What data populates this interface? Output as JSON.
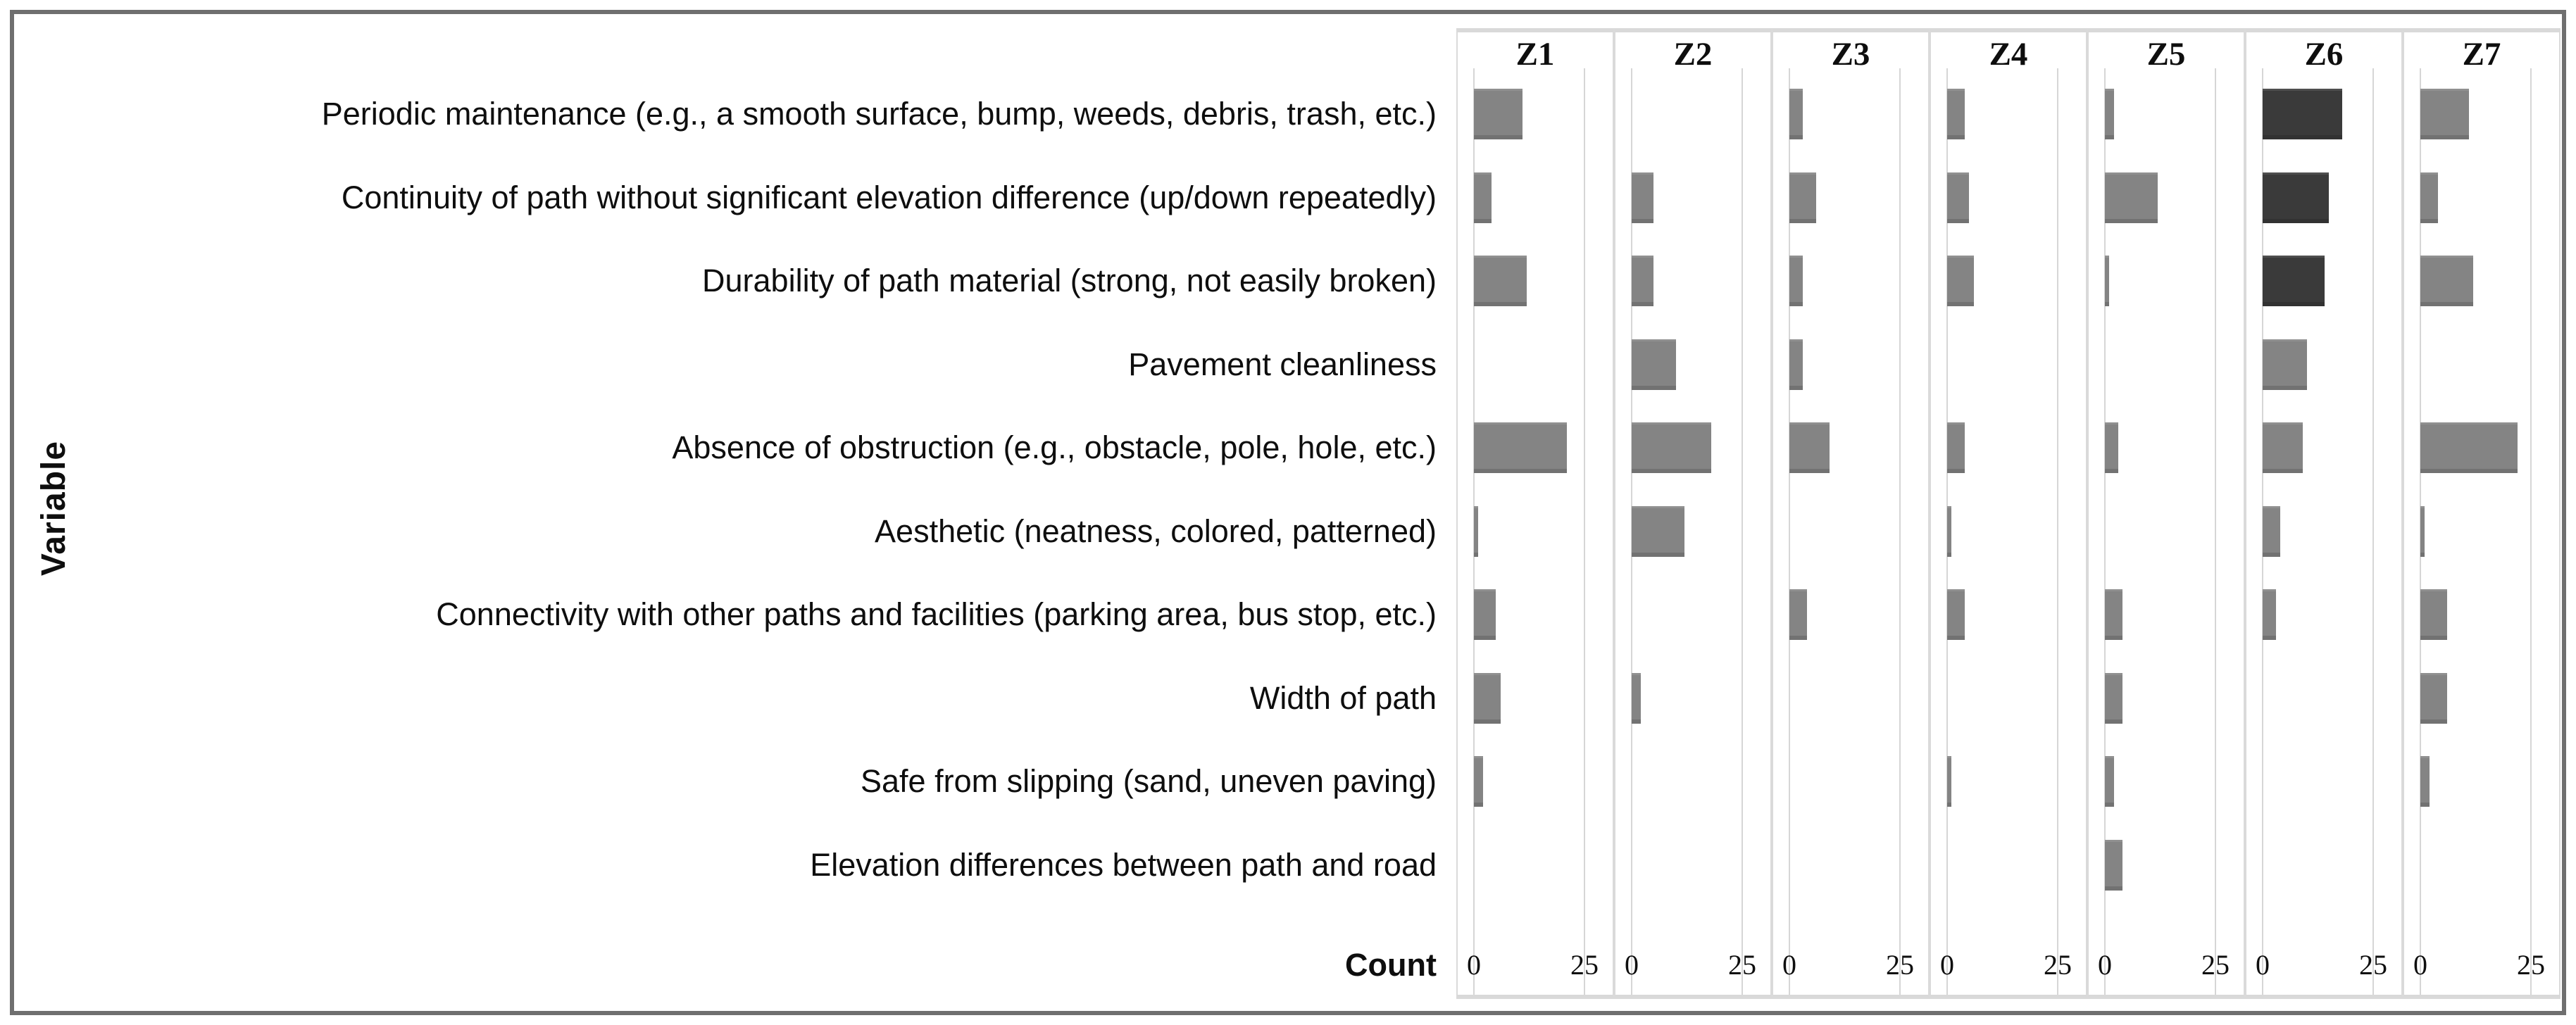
{
  "figure": {
    "type_note": "faceted horizontal bar chart (small multiples by zone)"
  },
  "chart_data": {
    "type": "bar",
    "orientation": "horizontal",
    "title": "",
    "xlabel": "Count",
    "ylabel": "Variable",
    "x_ticks": [
      0,
      25
    ],
    "xlim": [
      0,
      31
    ],
    "grid": "light vertical gridlines at 0 and 25 in each facet",
    "legend": "none",
    "bar_color": "#848484",
    "highlight_color": "#3a3a3a",
    "facets": [
      "Z1",
      "Z2",
      "Z3",
      "Z4",
      "Z5",
      "Z6",
      "Z7"
    ],
    "categories": [
      "Periodic maintenance (e.g., a smooth surface, bump, weeds, debris, trash, etc.)",
      "Continuity of path without significant elevation difference (up/down repeatedly)",
      "Durability of path material (strong, not easily broken)",
      "Pavement cleanliness",
      "Absence of obstruction (e.g., obstacle, pole, hole, etc.)",
      "Aesthetic (neatness, colored, patterned)",
      "Connectivity with other paths and facilities (parking area, bus stop, etc.)",
      "Width of path",
      "Safe from slipping (sand, uneven paving)",
      "Elevation differences between path and road"
    ],
    "series": [
      {
        "name": "Z1",
        "values": [
          11,
          4,
          12,
          0,
          21,
          1,
          5,
          6,
          2,
          0
        ],
        "highlight_indexes": []
      },
      {
        "name": "Z2",
        "values": [
          0,
          5,
          5,
          10,
          18,
          12,
          0,
          2,
          0,
          0
        ],
        "highlight_indexes": []
      },
      {
        "name": "Z3",
        "values": [
          3,
          6,
          3,
          3,
          9,
          0,
          4,
          0,
          0,
          0
        ],
        "highlight_indexes": []
      },
      {
        "name": "Z4",
        "values": [
          4,
          5,
          6,
          0,
          4,
          1,
          4,
          0,
          1,
          0
        ],
        "highlight_indexes": []
      },
      {
        "name": "Z5",
        "values": [
          2,
          12,
          1,
          0,
          3,
          0,
          4,
          4,
          2,
          4
        ],
        "highlight_indexes": []
      },
      {
        "name": "Z6",
        "values": [
          18,
          15,
          14,
          10,
          9,
          4,
          3,
          0,
          0,
          0
        ],
        "highlight_indexes": [
          0,
          1,
          2
        ]
      },
      {
        "name": "Z7",
        "values": [
          11,
          4,
          12,
          0,
          22,
          1,
          6,
          6,
          2,
          0
        ],
        "highlight_indexes": []
      }
    ]
  }
}
